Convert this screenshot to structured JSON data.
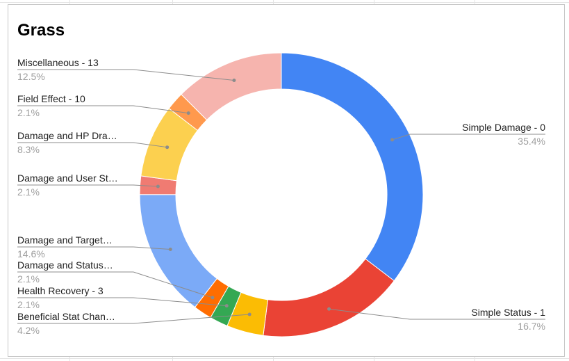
{
  "chart_data": {
    "type": "pie",
    "donut": true,
    "title": "Grass",
    "legend": "none",
    "slices": [
      {
        "label": "Simple Damage - 0",
        "value": 35.4,
        "pct_label": "35.4%",
        "color": "#4285F4",
        "side": "right"
      },
      {
        "label": "Simple Status - 1",
        "value": 16.7,
        "pct_label": "16.7%",
        "color": "#EA4335",
        "side": "right"
      },
      {
        "label": "Beneficial Stat Chan…",
        "value": 4.2,
        "pct_label": "4.2%",
        "color": "#FBBC04",
        "side": "left"
      },
      {
        "label": "Health Recovery - 3",
        "value": 2.1,
        "pct_label": "2.1%",
        "color": "#34A853",
        "side": "left"
      },
      {
        "label": "Damage and Status…",
        "value": 2.1,
        "pct_label": "2.1%",
        "color": "#FF6D01",
        "side": "left"
      },
      {
        "label": "Damage and Target…",
        "value": 14.6,
        "pct_label": "14.6%",
        "color": "#7BAAF7",
        "side": "left"
      },
      {
        "label": "Damage and User St…",
        "value": 2.1,
        "pct_label": "2.1%",
        "color": "#F07B72",
        "side": "left"
      },
      {
        "label": "Damage and HP Dra…",
        "value": 8.3,
        "pct_label": "8.3%",
        "color": "#FCD04F",
        "side": "left"
      },
      {
        "label": "Field Effect - 10",
        "value": 2.1,
        "pct_label": "2.1%",
        "color": "#FF994D",
        "side": "left"
      },
      {
        "label": "Miscellaneous - 13",
        "value": 12.5,
        "pct_label": "12.5%",
        "color": "#F6B4AE",
        "side": "left"
      }
    ]
  }
}
